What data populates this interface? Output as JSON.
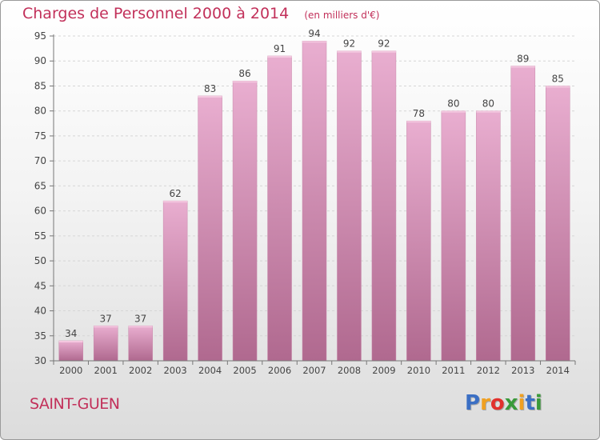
{
  "title": "Charges de Personnel 2000 à 2014",
  "unit_note": "(en milliers d'€)",
  "commune": "SAINT-GUEN",
  "brand": {
    "letters": [
      {
        "ch": "P",
        "color": "#3b6fc4"
      },
      {
        "ch": "r",
        "color": "#f0a020"
      },
      {
        "ch": "o",
        "color": "#e2312d"
      },
      {
        "ch": "x",
        "color": "#3a9a3a"
      },
      {
        "ch": "i",
        "color": "#f0a020"
      },
      {
        "ch": "t",
        "color": "#3b6fc4"
      },
      {
        "ch": "i",
        "color": "#3a9a3a"
      }
    ]
  },
  "colors": {
    "accent": "#c2305a",
    "bar_top": "#e9aed0",
    "bar_bottom": "#b0698f"
  },
  "chart_data": {
    "type": "bar",
    "title": "Charges de Personnel 2000 à 2014",
    "subtitle": "(en milliers d'€)",
    "xlabel": "",
    "ylabel": "",
    "categories": [
      "2000",
      "2001",
      "2002",
      "2003",
      "2004",
      "2005",
      "2006",
      "2007",
      "2008",
      "2009",
      "2010",
      "2011",
      "2012",
      "2013",
      "2014"
    ],
    "values": [
      34,
      37,
      37,
      62,
      83,
      86,
      91,
      94,
      92,
      92,
      78,
      80,
      80,
      89,
      85
    ],
    "ylim": [
      30,
      95
    ],
    "yticks": [
      30,
      35,
      40,
      45,
      50,
      55,
      60,
      65,
      70,
      75,
      80,
      85,
      90,
      95
    ],
    "grid": true,
    "legend": "none"
  }
}
